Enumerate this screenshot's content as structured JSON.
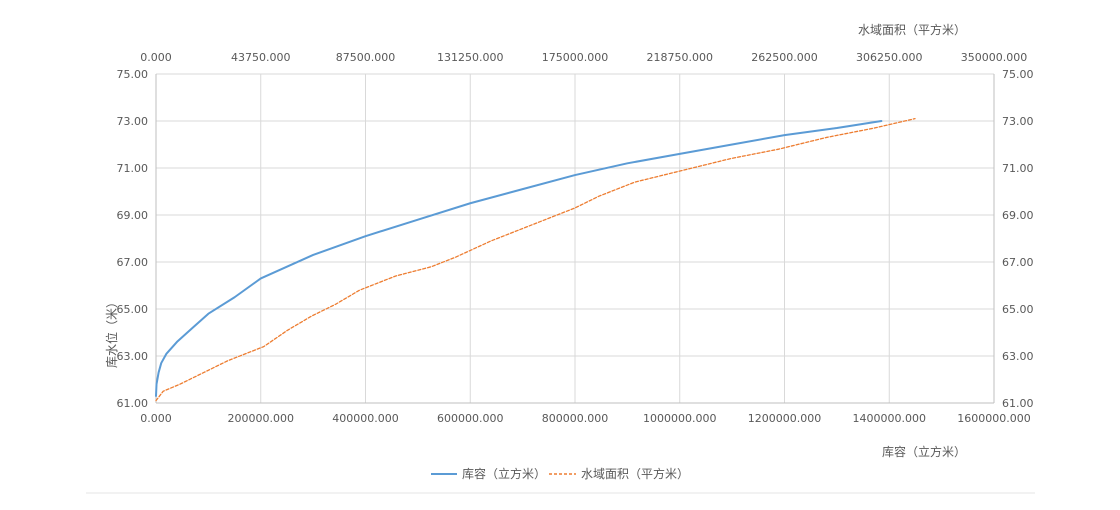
{
  "chart_data": {
    "type": "line",
    "colors": {
      "storage": "#5b9bd5",
      "area": "#ed7d31",
      "grid": "#d9d9d9"
    },
    "y_axis": {
      "label": "库水位（米）",
      "range": [
        61.0,
        75.0
      ],
      "ticks": [
        "61.00",
        "63.00",
        "65.00",
        "67.00",
        "69.00",
        "71.00",
        "73.00",
        "75.00"
      ],
      "right_ticks": [
        "61.00",
        "63.00",
        "65.00",
        "67.00",
        "69.00",
        "71.00",
        "73.00",
        "75.00"
      ]
    },
    "x_axis_bottom": {
      "label": "库容（立方米）",
      "range": [
        0,
        1600000
      ],
      "ticks": [
        "0.000",
        "200000.000",
        "400000.000",
        "600000.000",
        "800000.000",
        "1000000.000",
        "1200000.000",
        "1400000.000",
        "1600000.000"
      ]
    },
    "x_axis_top": {
      "label": "水域面积（平方米）",
      "range": [
        0,
        350000
      ],
      "ticks": [
        "0.000",
        "43750.000",
        "87500.000",
        "131250.000",
        "175000.000",
        "218750.000",
        "262500.000",
        "306250.000",
        "350000.000"
      ]
    },
    "legend": {
      "placement": "bottom"
    },
    "grid": true,
    "series": [
      {
        "name": "库容（立方米）",
        "axis": "bottom",
        "style": "solid",
        "points": [
          [
            0,
            61.3
          ],
          [
            1000,
            61.8
          ],
          [
            5000,
            62.3
          ],
          [
            10000,
            62.7
          ],
          [
            20000,
            63.1
          ],
          [
            40000,
            63.6
          ],
          [
            70000,
            64.2
          ],
          [
            100000,
            64.8
          ],
          [
            150000,
            65.5
          ],
          [
            200000,
            66.3
          ],
          [
            300000,
            67.3
          ],
          [
            400000,
            68.1
          ],
          [
            500000,
            68.8
          ],
          [
            600000,
            69.5
          ],
          [
            700000,
            70.1
          ],
          [
            800000,
            70.7
          ],
          [
            900000,
            71.2
          ],
          [
            1000000,
            71.6
          ],
          [
            1100000,
            72.0
          ],
          [
            1200000,
            72.4
          ],
          [
            1300000,
            72.7
          ],
          [
            1385000,
            73.0
          ]
        ]
      },
      {
        "name": "水域面积（平方米）",
        "axis": "top",
        "style": "dashed",
        "points": [
          [
            0,
            61.1
          ],
          [
            3000,
            61.5
          ],
          [
            10000,
            61.8
          ],
          [
            20000,
            62.3
          ],
          [
            30000,
            62.8
          ],
          [
            45000,
            63.4
          ],
          [
            55000,
            64.1
          ],
          [
            65000,
            64.7
          ],
          [
            75000,
            65.2
          ],
          [
            85000,
            65.8
          ],
          [
            100000,
            66.4
          ],
          [
            115000,
            66.8
          ],
          [
            125000,
            67.2
          ],
          [
            140000,
            67.9
          ],
          [
            160000,
            68.7
          ],
          [
            175000,
            69.3
          ],
          [
            185000,
            69.8
          ],
          [
            200000,
            70.4
          ],
          [
            220000,
            70.9
          ],
          [
            240000,
            71.4
          ],
          [
            260000,
            71.8
          ],
          [
            280000,
            72.3
          ],
          [
            300000,
            72.7
          ],
          [
            317000,
            73.1
          ]
        ]
      }
    ]
  }
}
